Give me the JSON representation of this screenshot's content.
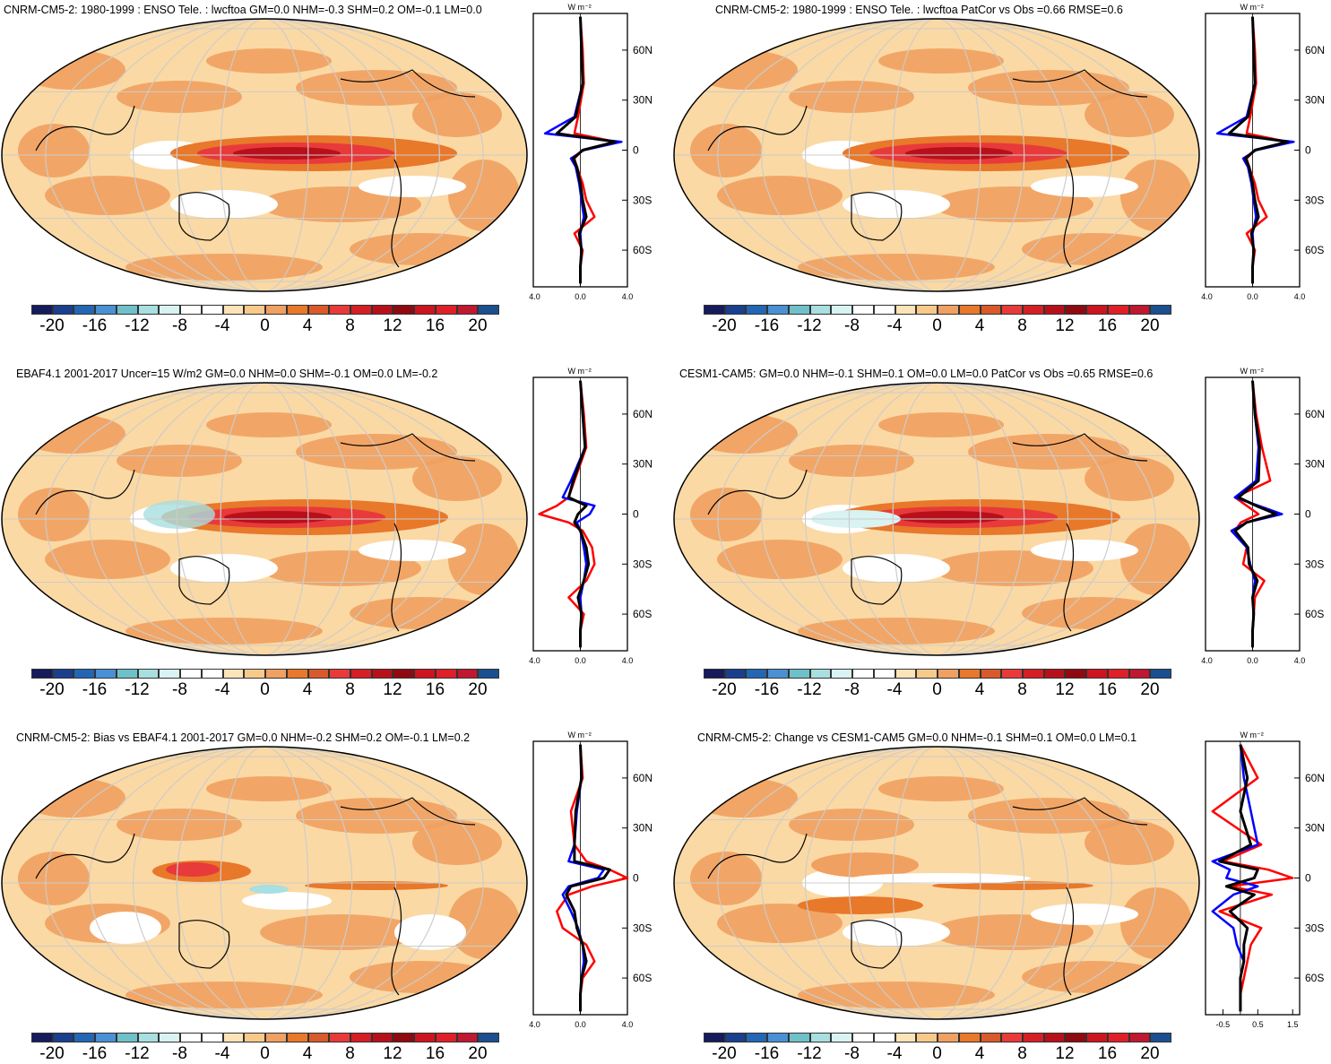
{
  "panels": [
    {
      "title": "CNRM-CM5-2: 1980-1999 : ENSO Tele. : lwcftoa GM=0.0 NHM=-0.3 SHM=0.2 OM=-0.1 LM=0.0",
      "zonal_x_ticks": [
        "-4.0",
        "0.0",
        "4.0"
      ],
      "lines": [
        "red",
        "blue",
        "black"
      ]
    },
    {
      "title": "CNRM-CM5-2: 1980-1999 : ENSO Tele. : lwcftoa PatCor vs Obs =0.66 RMSE=0.6",
      "zonal_x_ticks": [
        "-4.0",
        "0.0",
        "4.0"
      ],
      "lines": [
        "red",
        "blue",
        "black"
      ]
    },
    {
      "title": "EBAF4.1 2001-2017 Uncer=15 W/m2 GM=0.0 NHM=0.0 SHM=-0.1 OM=0.0 LM=-0.2",
      "zonal_x_ticks": [
        "-4.0",
        "0.0",
        "4.0"
      ],
      "lines": [
        "red",
        "blue",
        "black"
      ]
    },
    {
      "title": "CESM1-CAM5: GM=0.0 NHM=-0.1 SHM=0.1 OM=0.0 LM=0.0 PatCor vs Obs =0.65 RMSE=0.6",
      "zonal_x_ticks": [
        "-4.0",
        "0.0",
        "4.0"
      ],
      "lines": [
        "red",
        "blue",
        "black"
      ]
    },
    {
      "title": "CNRM-CM5-2: Bias vs EBAF4.1 2001-2017 GM=0.0 NHM=-0.2 SHM=0.2 OM=-0.1 LM=0.2",
      "zonal_x_ticks": [
        "-4.0",
        "0.0",
        "4.0"
      ],
      "lines": [
        "red",
        "blue",
        "black"
      ]
    },
    {
      "title": "CNRM-CM5-2: Change vs CESM1-CAM5 GM=0.0 NHM=-0.1 SHM=0.1 OM=0.0 LM=0.1",
      "zonal_x_ticks": [
        "-0.5",
        "0.5",
        "1.5"
      ],
      "lines": [
        "red",
        "blue",
        "black"
      ]
    }
  ],
  "zonal_unit": "W m⁻²",
  "lat_ticks": [
    "60N",
    "30N",
    "0",
    "30S",
    "60S"
  ],
  "colorbar": {
    "labels": [
      "-20",
      "-16",
      "-12",
      "-8",
      "-4",
      "0",
      "4",
      "8",
      "12",
      "16",
      "20"
    ],
    "colors": [
      "#161b5c",
      "#1b3f8f",
      "#2366b3",
      "#4a90d4",
      "#6ec1c9",
      "#a8dfe0",
      "#d9f2f2",
      "#ffffff",
      "#ffffff",
      "#fde4b8",
      "#f7c98a",
      "#f0a060",
      "#e8782a",
      "#d9592a",
      "#e83a3a",
      "#d41f26",
      "#b8101b",
      "#8f0a10",
      "#cc1520",
      "#e02028",
      "#c01830",
      "#1b4f8f"
    ]
  },
  "chart_data": [
    {
      "type": "heatmap",
      "title": "CNRM-CM5-2: 1980-1999 : ENSO Tele. : lwcftoa GM=0.0 NHM=-0.3 SHM=0.2 OM=-0.1 LM=0.0",
      "color_range": [
        -20,
        20
      ],
      "zonal": {
        "type": "line",
        "xlim": [
          -4,
          4
        ],
        "y_lat": [
          80,
          60,
          40,
          20,
          10,
          5,
          0,
          -5,
          -10,
          -20,
          -30,
          -40,
          -50,
          -60,
          -70,
          -80
        ],
        "series": [
          {
            "color": "red",
            "values": [
              0,
              0.2,
              0.3,
              -0.2,
              -0.5,
              3.0,
              0.2,
              -0.5,
              -0.3,
              0.2,
              0.5,
              1.2,
              -0.5,
              0.2,
              0,
              0
            ]
          },
          {
            "color": "blue",
            "values": [
              0,
              0.1,
              0.2,
              -0.5,
              -3.0,
              3.5,
              0.3,
              -0.8,
              -0.4,
              -0.1,
              0.1,
              0.3,
              0,
              0.1,
              0,
              0
            ]
          },
          {
            "color": "black",
            "values": [
              0,
              0.1,
              0.2,
              -0.4,
              -2.0,
              3.0,
              0.2,
              -0.6,
              -0.3,
              0,
              0.2,
              0.5,
              -0.1,
              0.1,
              0,
              0
            ]
          }
        ]
      }
    },
    {
      "type": "heatmap",
      "title": "CNRM-CM5-2: 1980-1999 : ENSO Tele. : lwcftoa PatCor vs Obs =0.66 RMSE=0.6",
      "color_range": [
        -20,
        20
      ],
      "zonal": {
        "type": "line",
        "xlim": [
          -4,
          4
        ],
        "y_lat": [
          80,
          60,
          40,
          20,
          10,
          5,
          0,
          -5,
          -10,
          -20,
          -30,
          -40,
          -50,
          -60,
          -70,
          -80
        ],
        "series": [
          {
            "color": "red",
            "values": [
              0,
              0.2,
              0.3,
              -0.2,
              -0.5,
              3.0,
              0.2,
              -0.5,
              -0.3,
              0.2,
              0.5,
              1.2,
              -0.5,
              0.2,
              0,
              0
            ]
          },
          {
            "color": "blue",
            "values": [
              0,
              0.1,
              0.2,
              -0.5,
              -3.0,
              3.5,
              0.3,
              -0.8,
              -0.4,
              -0.1,
              0.1,
              0.3,
              0,
              0.1,
              0,
              0
            ]
          },
          {
            "color": "black",
            "values": [
              0,
              0.1,
              0.2,
              -0.4,
              -2.0,
              3.0,
              0.2,
              -0.6,
              -0.3,
              0,
              0.2,
              0.5,
              -0.1,
              0.1,
              0,
              0
            ]
          }
        ]
      }
    },
    {
      "type": "heatmap",
      "title": "EBAF4.1 2001-2017 Uncer=15 W/m2 GM=0.0 NHM=0.0 SHM=-0.1 OM=0.0 LM=-0.2",
      "color_range": [
        -20,
        20
      ],
      "zonal": {
        "type": "line",
        "xlim": [
          -4,
          4
        ],
        "y_lat": [
          80,
          60,
          40,
          20,
          10,
          5,
          0,
          -5,
          -10,
          -20,
          -30,
          -40,
          -50,
          -60,
          -70,
          -80
        ],
        "series": [
          {
            "color": "red",
            "values": [
              0,
              0.3,
              0.5,
              -0.5,
              -1.0,
              -2.0,
              -3.5,
              -1.0,
              0.2,
              1.0,
              1.2,
              0.5,
              -1.0,
              0.3,
              0,
              0
            ]
          },
          {
            "color": "blue",
            "values": [
              0,
              0.2,
              0.4,
              -0.8,
              -1.5,
              1.2,
              0.8,
              -0.3,
              0,
              0.3,
              0.5,
              0.3,
              0,
              0.1,
              0,
              0
            ]
          },
          {
            "color": "black",
            "values": [
              0,
              0.2,
              0.4,
              -0.6,
              -1.0,
              0.5,
              -0.2,
              -0.5,
              0,
              0.5,
              0.7,
              0.3,
              -0.2,
              0.1,
              0,
              0
            ]
          }
        ]
      }
    },
    {
      "type": "heatmap",
      "title": "CESM1-CAM5: GM=0.0 NHM=-0.1 SHM=0.1 OM=0.0 LM=0.0 PatCor vs Obs =0.65 RMSE=0.6",
      "color_range": [
        -20,
        20
      ],
      "zonal": {
        "type": "line",
        "xlim": [
          -4,
          4
        ],
        "y_lat": [
          80,
          60,
          40,
          20,
          10,
          5,
          0,
          -5,
          -10,
          -20,
          -30,
          -40,
          -50,
          -60,
          -70,
          -80
        ],
        "series": [
          {
            "color": "red",
            "values": [
              0,
              0.3,
              0.8,
              1.5,
              -1.5,
              -0.5,
              0.5,
              -1.0,
              -1.5,
              -0.5,
              -0.8,
              1.0,
              0.2,
              0.1,
              0,
              0
            ]
          },
          {
            "color": "blue",
            "values": [
              0,
              0.2,
              0.5,
              0.3,
              -1.5,
              0.5,
              2.5,
              -0.5,
              -1.8,
              -0.5,
              -0.2,
              0.2,
              0,
              0.1,
              0,
              0
            ]
          },
          {
            "color": "black",
            "values": [
              0,
              0.2,
              0.6,
              0.5,
              -1.2,
              0.3,
              2.0,
              -0.5,
              -1.5,
              -0.4,
              -0.3,
              0.4,
              0,
              0.1,
              0,
              0
            ]
          }
        ]
      }
    },
    {
      "type": "heatmap",
      "title": "CNRM-CM5-2: Bias vs EBAF4.1 2001-2017 GM=0.0 NHM=-0.2 SHM=0.2 OM=-0.1 LM=0.2",
      "color_range": [
        -20,
        20
      ],
      "zonal": {
        "type": "line",
        "xlim": [
          -4,
          4
        ],
        "y_lat": [
          80,
          60,
          40,
          20,
          10,
          5,
          0,
          -5,
          -10,
          -20,
          -30,
          -40,
          -50,
          -60,
          -70,
          -80
        ],
        "series": [
          {
            "color": "red",
            "values": [
              0,
              0.2,
              -0.8,
              -0.5,
              0.5,
              2.5,
              4.0,
              1.0,
              -1.0,
              -2.0,
              -1.5,
              0.5,
              1.2,
              0.2,
              0,
              0
            ]
          },
          {
            "color": "blue",
            "values": [
              0,
              0.1,
              -0.3,
              -0.5,
              -1.0,
              2.0,
              1.5,
              -1.0,
              -1.5,
              -0.8,
              -0.2,
              0.2,
              0.3,
              0.1,
              0,
              0
            ]
          },
          {
            "color": "black",
            "values": [
              0,
              0.1,
              -0.4,
              -0.5,
              -0.5,
              2.5,
              2.0,
              -0.8,
              -1.2,
              -0.5,
              -0.3,
              0.2,
              0.5,
              0.1,
              0,
              0
            ]
          }
        ]
      }
    },
    {
      "type": "heatmap",
      "title": "CNRM-CM5-2: Change vs CESM1-CAM5 GM=0.0 NHM=-0.1 SHM=0.1 OM=0.0 LM=0.1",
      "color_range": [
        -20,
        20
      ],
      "zonal": {
        "type": "line",
        "xlim": [
          -1,
          1.7
        ],
        "y_lat": [
          80,
          60,
          40,
          20,
          10,
          5,
          0,
          -5,
          -10,
          -20,
          -30,
          -40,
          -50,
          -60,
          -70,
          -80
        ],
        "series": [
          {
            "color": "red",
            "values": [
              0,
              0.5,
              -0.8,
              0.6,
              -0.5,
              0.8,
              1.5,
              -0.3,
              0.9,
              -0.6,
              0.6,
              0.3,
              0.2,
              0.1,
              0,
              0
            ]
          },
          {
            "color": "blue",
            "values": [
              0,
              0.1,
              0.3,
              0.5,
              -0.8,
              -0.3,
              -0.4,
              0.5,
              -0.2,
              -0.8,
              -0.2,
              -0.1,
              0.1,
              0,
              0,
              0
            ]
          },
          {
            "color": "black",
            "values": [
              0,
              0.2,
              0,
              0.3,
              -0.6,
              0.5,
              0.4,
              -0.4,
              0.4,
              -0.3,
              0.2,
              0.1,
              0.1,
              0,
              0,
              0
            ]
          }
        ]
      }
    }
  ]
}
